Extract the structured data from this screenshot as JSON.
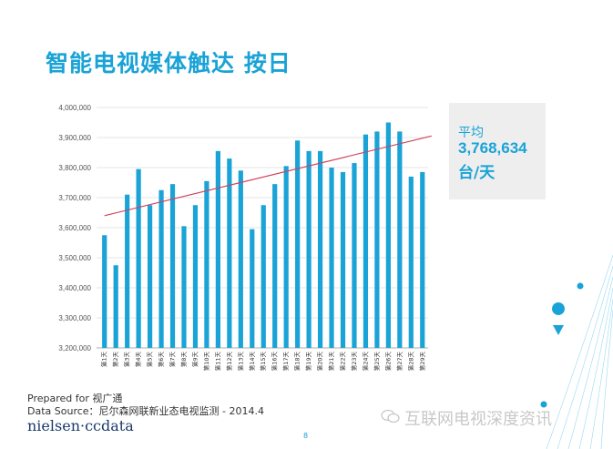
{
  "title": "智能电视媒体触达 按日",
  "average": {
    "label": "平均",
    "value": "3,768,634",
    "unit": "台/天"
  },
  "footer": {
    "prepared": "Prepared for 视广通",
    "source": "Data Source：尼尔森网联新业态电视监测 - 2014.4",
    "logo": "nielsen·ccdata",
    "page_number": "8"
  },
  "watermark": "互联网电视深度资讯",
  "colors": {
    "bar": "#1aa3d6",
    "trend": "#d0435a",
    "title": "#1aa3d6",
    "avg_box": "#eeeeef"
  },
  "chart_data": {
    "type": "bar",
    "categories": [
      "第1天",
      "第2天",
      "第3天",
      "第4天",
      "第5天",
      "第6天",
      "第7天",
      "第8天",
      "第9天",
      "第10天",
      "第11天",
      "第12天",
      "第13天",
      "第14天",
      "第15天",
      "第16天",
      "第17天",
      "第18天",
      "第19天",
      "第20天",
      "第21天",
      "第22天",
      "第23天",
      "第24天",
      "第25天",
      "第26天",
      "第27天",
      "第28天",
      "第29天"
    ],
    "values": [
      3575000,
      3475000,
      3710000,
      3795000,
      3675000,
      3725000,
      3745000,
      3605000,
      3675000,
      3755000,
      3855000,
      3830000,
      3790000,
      3595000,
      3675000,
      3745000,
      3805000,
      3890000,
      3855000,
      3855000,
      3800000,
      3785000,
      3815000,
      3910000,
      3920000,
      3950000,
      3920000,
      3770000,
      3785000
    ],
    "yticks": [
      "4,000,000",
      "3,900,000",
      "3,800,000",
      "3,700,000",
      "3,600,000",
      "3,500,000",
      "3,400,000",
      "3,300,000",
      "3,200,000"
    ],
    "ylim": [
      3200000,
      4000000
    ],
    "trendline": {
      "start": 3640000,
      "end": 3905000
    },
    "grid": true,
    "legend": "none"
  }
}
